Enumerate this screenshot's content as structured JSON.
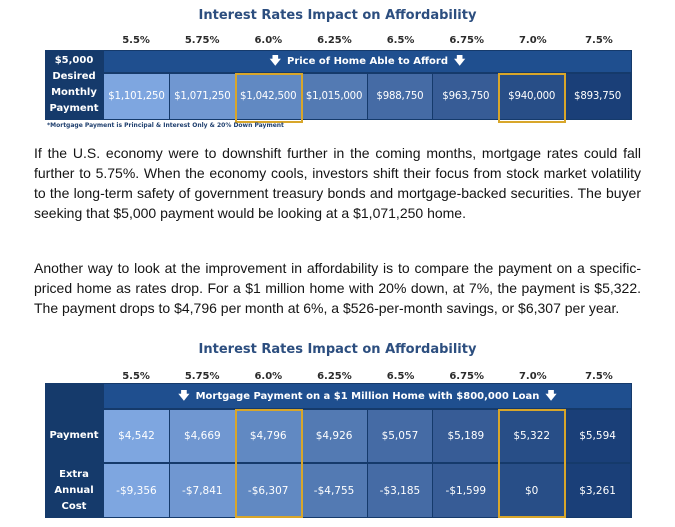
{
  "table1": {
    "title": "Interest Rates Impact on Affordability",
    "rates": [
      "5.5%",
      "5.75%",
      "6.0%",
      "6.25%",
      "6.5%",
      "6.75%",
      "7.0%",
      "7.5%"
    ],
    "row_label": [
      "$5,000",
      "Desired",
      "Monthly",
      "Payment"
    ],
    "header": "Price of Home Able to Afford",
    "values": [
      "$1,101,250",
      "$1,071,250",
      "$1,042,500",
      "$1,015,000",
      "$988,750",
      "$963,750",
      "$940,000",
      "$893,750"
    ],
    "footnote": "*Mortgage Payment is Principal & Interest Only & 20% Down Payment",
    "highlighted_columns": [
      "6.0%",
      "7.0%"
    ]
  },
  "paragraphs": [
    "If the U.S. economy were to downshift further in the coming months, mortgage rates could fall further to 5.75%. When the economy cools, investors shift their focus from stock market volatility to the long-term safety of government treasury bonds and mortgage-backed securities. The buyer seeking that $5,000 payment would be looking at a $1,071,250 home.",
    "Another way to look at the improvement in affordability is to compare the payment on a specific-priced home as rates drop. For a $1 million home with 20% down, at 7%, the payment is $5,322. The payment drops to $4,796 per month at 6%, a $526-per-month savings, or $6,307 per year."
  ],
  "table2": {
    "title": "Interest Rates Impact on Affordability",
    "rates": [
      "5.5%",
      "5.75%",
      "6.0%",
      "6.25%",
      "6.5%",
      "6.75%",
      "7.0%",
      "7.5%"
    ],
    "header": "Mortgage Payment on a $1 Million Home with $800,000 Loan",
    "payment_label": "Payment",
    "payments": [
      "$4,542",
      "$4,669",
      "$4,796",
      "$4,926",
      "$5,057",
      "$5,189",
      "$5,322",
      "$5,594"
    ],
    "extra_label": [
      "Extra",
      "Annual",
      "Cost"
    ],
    "extra_costs": [
      "-$9,356",
      "-$7,841",
      "-$6,307",
      "-$4,755",
      "-$3,185",
      "-$1,599",
      "$0",
      "$3,261"
    ],
    "highlighted_columns": [
      "6.0%",
      "7.0%"
    ]
  },
  "colors": {
    "title": "#2c4e7f",
    "table_dark": "#153a6b",
    "header_band": "#1f4f8f",
    "highlight_border": "#d8a62a",
    "gradient_light": "#7ea6e0",
    "gradient_dark": "#1a3f78"
  },
  "icons": {
    "header_arrow": "down-arrow-icon"
  }
}
